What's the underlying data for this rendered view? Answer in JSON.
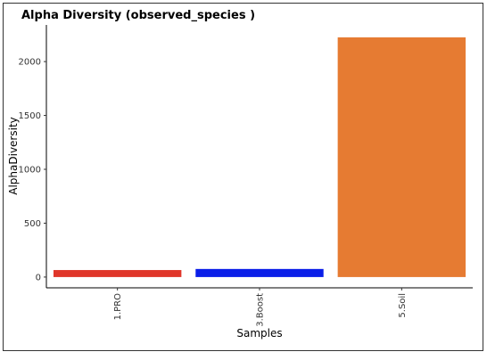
{
  "chart_data": {
    "type": "bar",
    "title": "Alpha Diversity (observed_species )",
    "xlabel": "Samples",
    "ylabel": "AlphaDiversity",
    "categories": [
      "1.PRO",
      "3.Boost",
      "5.Soil"
    ],
    "values": [
      65,
      75,
      2225
    ],
    "colors": [
      "#e0362a",
      "#0a1ee8",
      "#e67b32"
    ],
    "ylim": [
      -100,
      2340
    ],
    "yticks": [
      0,
      500,
      1000,
      1500,
      2000
    ],
    "grid": false
  }
}
